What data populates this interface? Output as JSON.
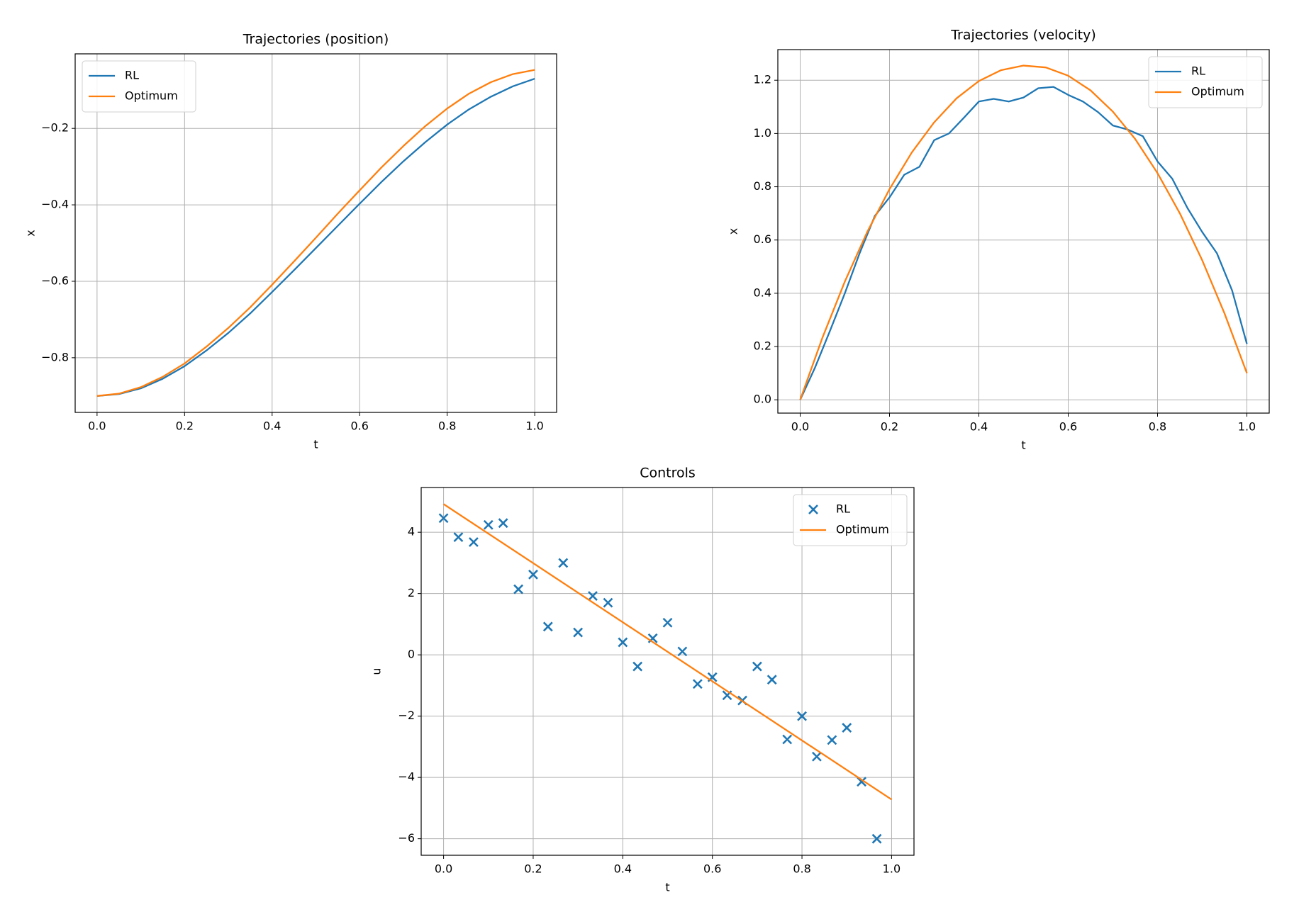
{
  "chart_data": [
    {
      "type": "line",
      "title": "Trajectories (position)",
      "xlabel": "t",
      "ylabel": "x",
      "xlim": [
        -0.05,
        1.05
      ],
      "ylim": [
        -0.943,
        -0.005
      ],
      "xticks": [
        {
          "value": 0,
          "label": "0.0"
        },
        0.2,
        0.4,
        0.6,
        0.8,
        {
          "value": 1,
          "label": "1.0"
        }
      ],
      "yticks": [
        {
          "value": -0.8,
          "label": "−0.8"
        },
        {
          "value": -0.6,
          "label": "−0.6"
        },
        {
          "value": -0.4,
          "label": "−0.4"
        },
        {
          "value": -0.2,
          "label": "−0.2"
        }
      ],
      "grid": true,
      "legend": "upper left",
      "series": [
        {
          "name": "RL",
          "color": "#1f77b4",
          "x": [
            0,
            0.05,
            0.1,
            0.15,
            0.2,
            0.25,
            0.3,
            0.35,
            0.4,
            0.45,
            0.5,
            0.55,
            0.6,
            0.65,
            0.7,
            0.75,
            0.8,
            0.85,
            0.9,
            0.95,
            1
          ],
          "values": [
            -0.9,
            -0.895,
            -0.88,
            -0.855,
            -0.822,
            -0.781,
            -0.735,
            -0.684,
            -0.628,
            -0.571,
            -0.513,
            -0.455,
            -0.397,
            -0.34,
            -0.286,
            -0.236,
            -0.19,
            -0.15,
            -0.117,
            -0.09,
            -0.07
          ]
        },
        {
          "name": "Optimum",
          "color": "#ff7f0e",
          "x": [
            0,
            0.05,
            0.1,
            0.15,
            0.2,
            0.25,
            0.3,
            0.35,
            0.4,
            0.45,
            0.5,
            0.55,
            0.6,
            0.65,
            0.7,
            0.75,
            0.8,
            0.85,
            0.9,
            0.95,
            1
          ],
          "values": [
            -0.9,
            -0.894,
            -0.877,
            -0.85,
            -0.815,
            -0.771,
            -0.722,
            -0.668,
            -0.609,
            -0.548,
            -0.486,
            -0.423,
            -0.362,
            -0.302,
            -0.246,
            -0.194,
            -0.148,
            -0.109,
            -0.079,
            -0.058,
            -0.047
          ]
        }
      ]
    },
    {
      "type": "line",
      "title": "Trajectories (velocity)",
      "xlabel": "t",
      "ylabel": "x",
      "xlim": [
        -0.05,
        1.05
      ],
      "ylim": [
        -0.05,
        1.315
      ],
      "xticks": [
        {
          "value": 0,
          "label": "0.0"
        },
        0.2,
        0.4,
        0.6,
        0.8,
        {
          "value": 1,
          "label": "1.0"
        }
      ],
      "yticks": [
        {
          "value": 0,
          "label": "0.0"
        },
        0.2,
        0.4,
        0.6,
        0.8,
        {
          "value": 1,
          "label": "1.0"
        },
        1.2
      ],
      "grid": true,
      "legend": "upper right",
      "series": [
        {
          "name": "RL",
          "color": "#1f77b4",
          "x": [
            0,
            0.033,
            0.067,
            0.1,
            0.133,
            0.167,
            0.2,
            0.233,
            0.267,
            0.3,
            0.333,
            0.367,
            0.4,
            0.433,
            0.467,
            0.5,
            0.533,
            0.567,
            0.6,
            0.633,
            0.667,
            0.7,
            0.733,
            0.767,
            0.8,
            0.833,
            0.867,
            0.9,
            0.933,
            0.967,
            1
          ],
          "values": [
            0,
            0.12,
            0.26,
            0.4,
            0.55,
            0.69,
            0.76,
            0.845,
            0.875,
            0.975,
            1.0,
            1.06,
            1.12,
            1.13,
            1.12,
            1.135,
            1.17,
            1.175,
            1.145,
            1.12,
            1.08,
            1.03,
            1.015,
            0.99,
            0.895,
            0.83,
            0.72,
            0.63,
            0.55,
            0.41,
            0.21
          ]
        },
        {
          "name": "Optimum",
          "color": "#ff7f0e",
          "x": [
            0,
            0.05,
            0.1,
            0.15,
            0.2,
            0.25,
            0.3,
            0.35,
            0.4,
            0.45,
            0.5,
            0.55,
            0.6,
            0.65,
            0.7,
            0.75,
            0.8,
            0.85,
            0.9,
            0.95,
            1
          ],
          "values": [
            0,
            0.234,
            0.444,
            0.63,
            0.791,
            0.929,
            1.042,
            1.132,
            1.197,
            1.238,
            1.255,
            1.248,
            1.217,
            1.162,
            1.082,
            0.979,
            0.851,
            0.7,
            0.524,
            0.324,
            0.1
          ]
        }
      ]
    },
    {
      "type": "scatter",
      "title": "Controls",
      "xlabel": "t",
      "ylabel": "u",
      "xlim": [
        -0.05,
        1.05
      ],
      "ylim": [
        -6.54,
        5.46
      ],
      "xticks": [
        {
          "value": 0,
          "label": "0.0"
        },
        0.2,
        0.4,
        0.6,
        0.8,
        {
          "value": 1,
          "label": "1.0"
        }
      ],
      "yticks": [
        {
          "value": -6,
          "label": "−6"
        },
        {
          "value": -4,
          "label": "−4"
        },
        {
          "value": -2,
          "label": "−2"
        },
        0,
        2,
        4
      ],
      "grid": true,
      "legend": "upper right",
      "series": [
        {
          "name": "RL",
          "color": "#1f77b4",
          "type": "scatter",
          "marker": "x",
          "x": [
            0,
            0.033,
            0.067,
            0.1,
            0.133,
            0.167,
            0.2,
            0.233,
            0.267,
            0.3,
            0.333,
            0.367,
            0.4,
            0.433,
            0.467,
            0.5,
            0.533,
            0.567,
            0.6,
            0.633,
            0.667,
            0.7,
            0.733,
            0.767,
            0.8,
            0.833,
            0.867,
            0.9,
            0.933,
            0.967
          ],
          "values": [
            4.46,
            3.84,
            3.68,
            4.24,
            4.3,
            2.14,
            2.62,
            0.92,
            3.0,
            0.73,
            1.92,
            1.7,
            0.41,
            -0.38,
            0.54,
            1.05,
            0.11,
            -0.95,
            -0.73,
            -1.32,
            -1.49,
            -0.38,
            -0.81,
            -2.76,
            -2.0,
            -3.32,
            -2.78,
            -2.38,
            -4.14,
            -6.0
          ]
        },
        {
          "name": "Optimum",
          "color": "#ff7f0e",
          "type": "line",
          "x": [
            0,
            1
          ],
          "values": [
            4.92,
            -4.72
          ]
        }
      ]
    }
  ]
}
